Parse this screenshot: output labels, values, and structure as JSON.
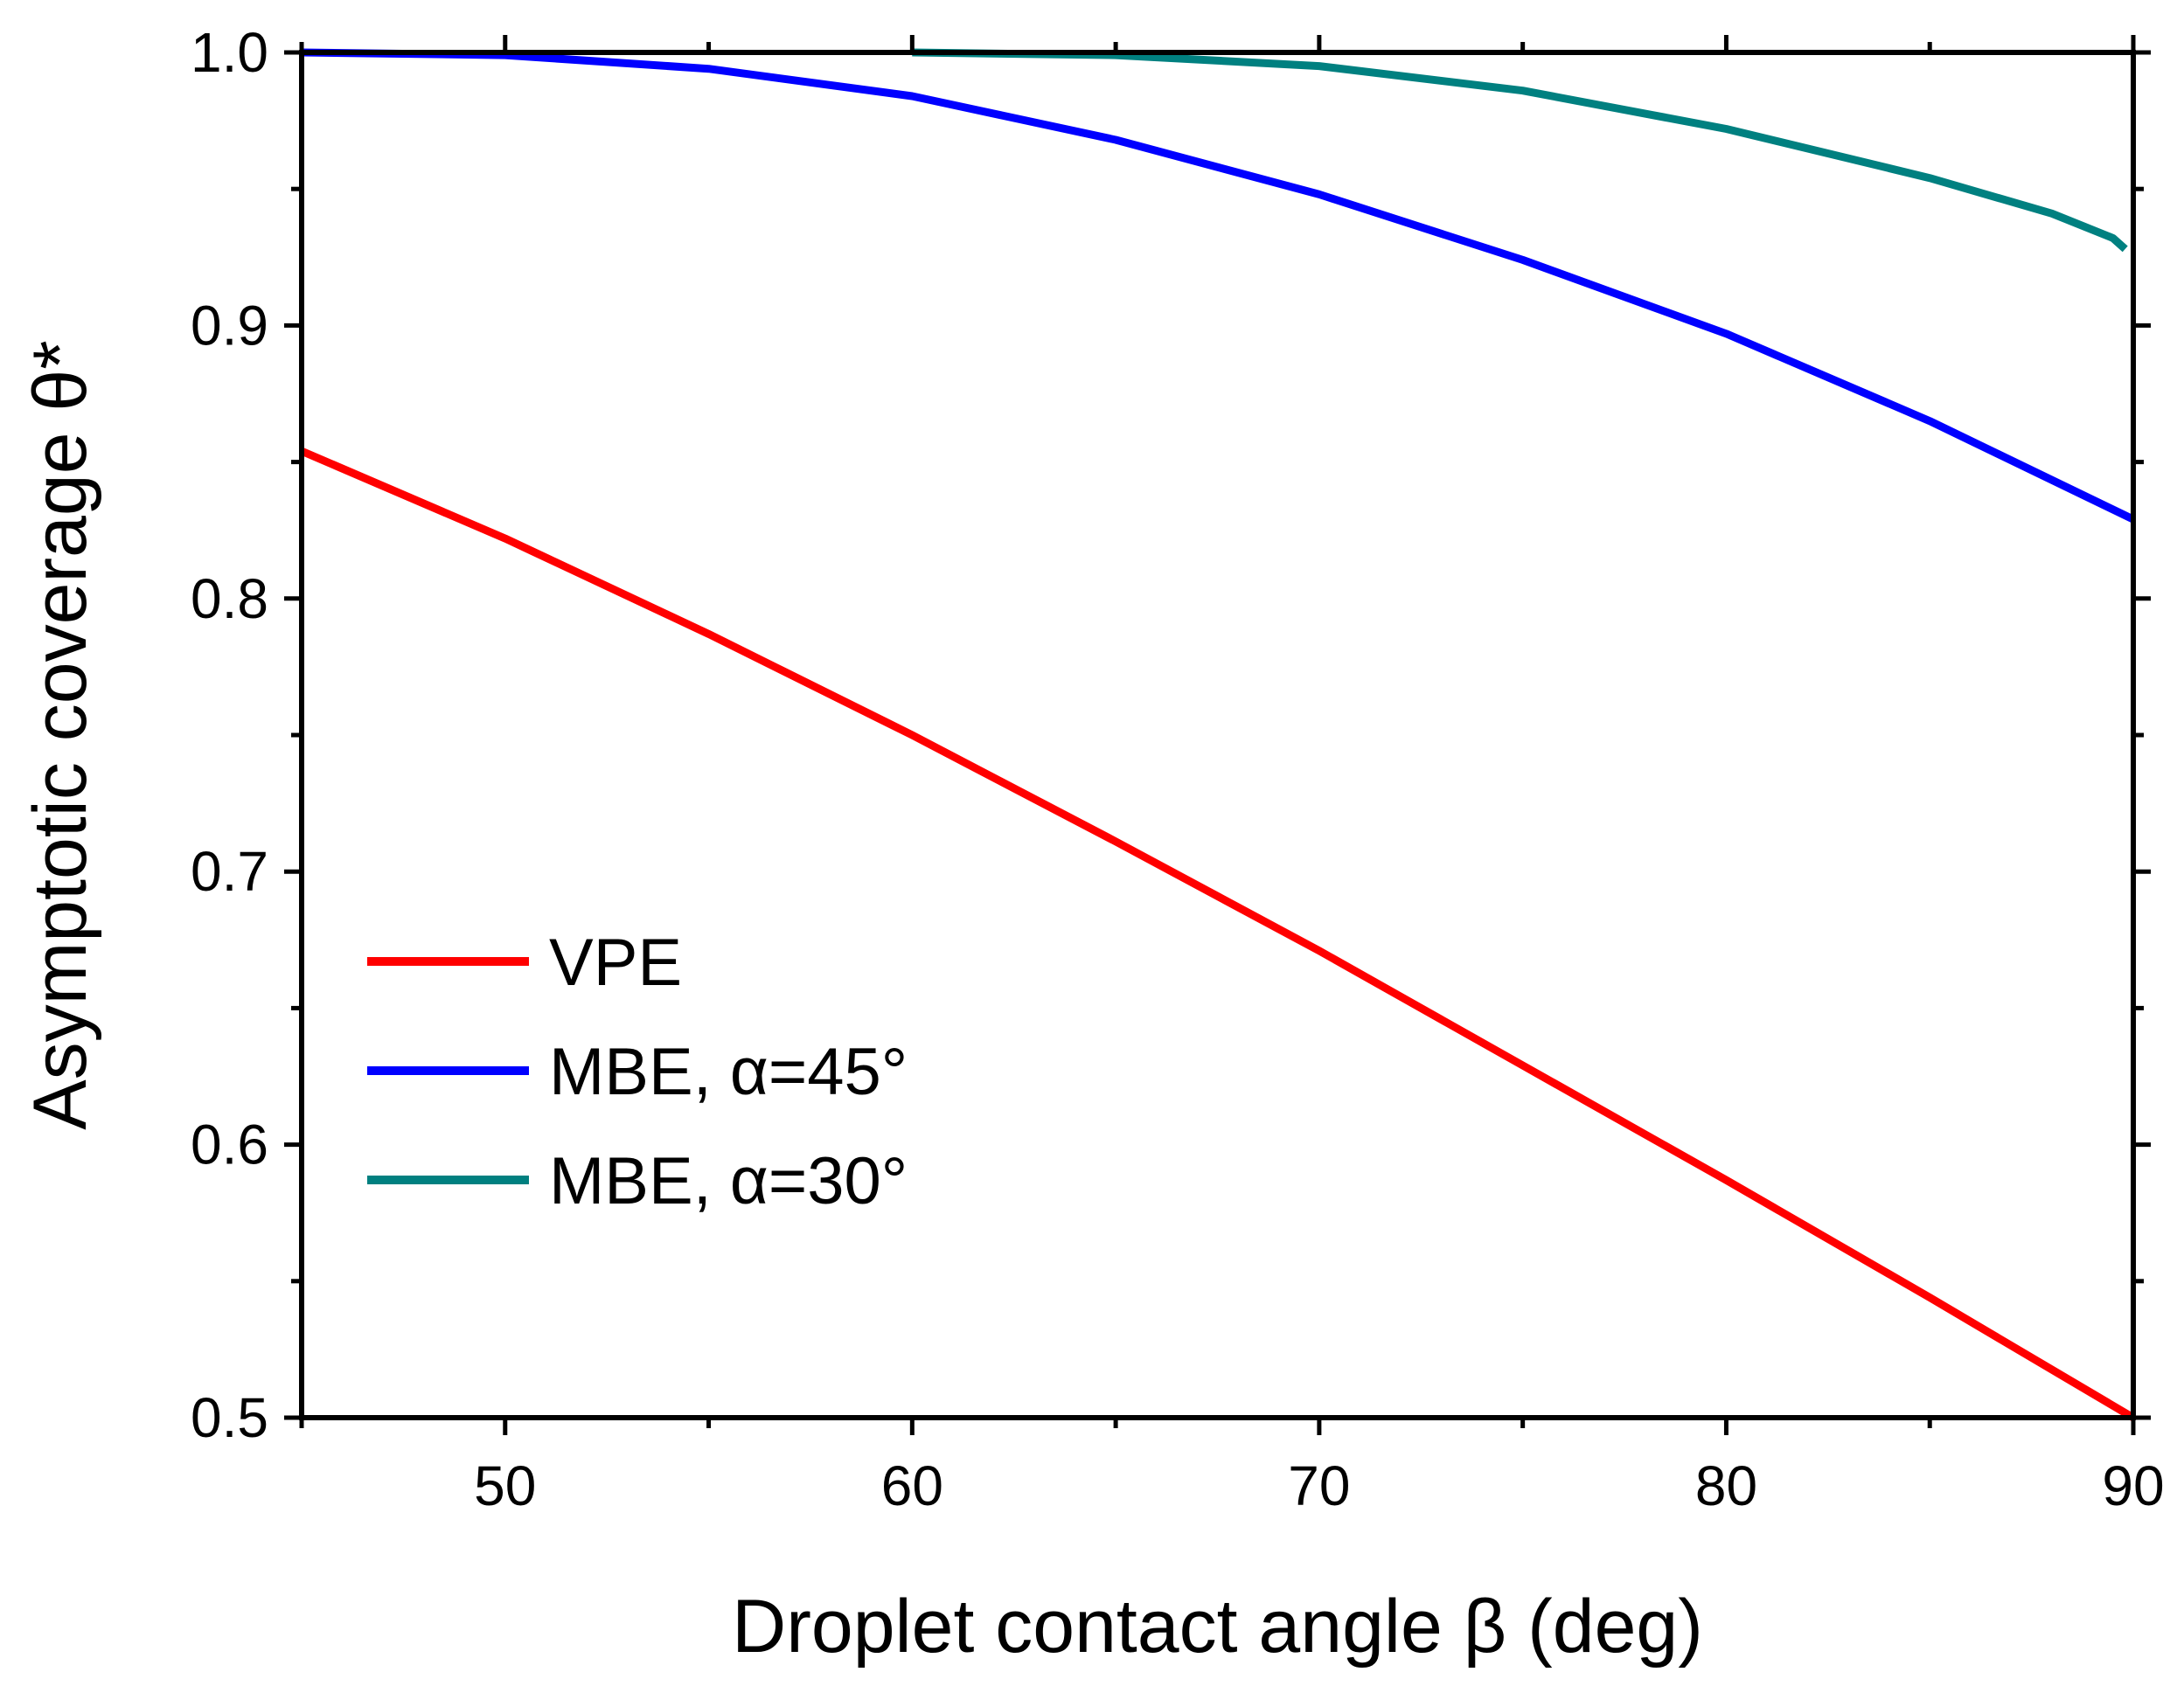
{
  "chart_data": {
    "type": "line",
    "title": "",
    "xlabel": "Droplet contact angle β (deg)",
    "ylabel": "Asymptotic coverage θ*",
    "xlim": [
      45,
      90
    ],
    "ylim": [
      0.5,
      1.0
    ],
    "x_ticks": [
      50,
      60,
      70,
      80,
      90
    ],
    "x_tick_labels": [
      "50",
      "60",
      "70",
      "80",
      "90"
    ],
    "y_ticks": [
      0.5,
      0.6,
      0.7,
      0.8,
      0.9,
      1.0
    ],
    "y_tick_labels": [
      "0.5",
      "0.6",
      "0.7",
      "0.8",
      "0.9",
      "1.0"
    ],
    "grid": false,
    "legend_position": "lower-left",
    "series": [
      {
        "name": "VPE",
        "color": "#ff0000",
        "x": [
          45,
          50,
          55,
          60,
          65,
          70,
          75,
          80,
          85,
          90
        ],
        "y": [
          0.854,
          0.822,
          0.787,
          0.75,
          0.711,
          0.671,
          0.629,
          0.587,
          0.544,
          0.5
        ]
      },
      {
        "name": "MBE, α=45°",
        "color": "#0000ff",
        "x": [
          45,
          50,
          55,
          60,
          65,
          70,
          75,
          80,
          85,
          90
        ],
        "y": [
          1.0,
          0.999,
          0.994,
          0.984,
          0.968,
          0.948,
          0.924,
          0.897,
          0.865,
          0.829
        ]
      },
      {
        "name": "MBE, α=30°",
        "color": "#008080",
        "x": [
          60,
          65,
          70,
          75,
          80,
          85,
          88,
          89.5,
          89.8
        ],
        "y": [
          1.0,
          0.999,
          0.995,
          0.986,
          0.972,
          0.954,
          0.941,
          0.932,
          0.928
        ]
      }
    ]
  }
}
